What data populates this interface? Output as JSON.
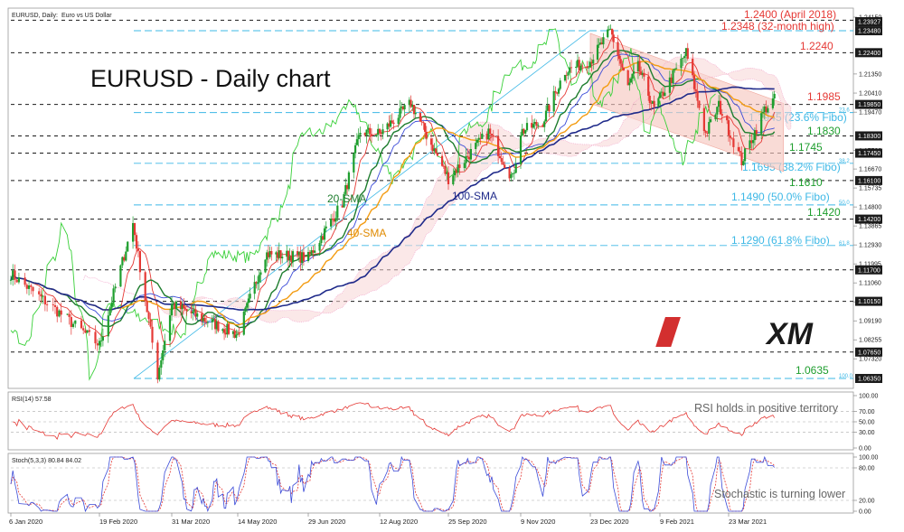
{
  "header": {
    "instrument": "EURUSD, Daily:",
    "description": "Euro vs US Dollar",
    "title": "EURUSD - Daily chart"
  },
  "logo_text": "XM",
  "chart_data": {
    "type": "candlestick",
    "price_axis_ticks": [
      "1.24150",
      "1.21350",
      "1.20410",
      "1.19470",
      "1.17590",
      "1.16670",
      "1.15735",
      "1.14800",
      "1.13865",
      "1.12930",
      "1.11995",
      "1.11060",
      "1.10125",
      "1.09190",
      "1.08255",
      "1.07320"
    ],
    "price_badges": [
      {
        "value": "1.23927",
        "kind": "black"
      },
      {
        "value": "1.23480",
        "kind": "black"
      },
      {
        "value": "1.22400",
        "kind": "black"
      },
      {
        "value": "1.19850",
        "kind": "black"
      },
      {
        "value": "1.18300",
        "kind": "black"
      },
      {
        "value": "1.17450",
        "kind": "black"
      },
      {
        "value": "1.16100",
        "kind": "black"
      },
      {
        "value": "1.14200",
        "kind": "black"
      },
      {
        "value": "1.11700",
        "kind": "black"
      },
      {
        "value": "1.10150",
        "kind": "black"
      },
      {
        "value": "1.07650",
        "kind": "black"
      },
      {
        "value": "1.06350",
        "kind": "black"
      }
    ],
    "ylim": [
      1.0595,
      1.2455
    ],
    "x_labels": [
      "6 Jan 2020",
      "19 Feb 2020",
      "31 Mar 2020",
      "14 May 2020",
      "29 Jun 2020",
      "12 Aug 2020",
      "25 Sep 2020",
      "9 Nov 2020",
      "23 Dec 2020",
      "9 Feb 2021",
      "23 Mar 2021"
    ],
    "levels": [
      {
        "label": "1.2400 (April 2018)",
        "value": 1.24,
        "color": "#e53935",
        "style": "dash"
      },
      {
        "label": "1.2348 (32-month high)",
        "value": 1.2348,
        "color": "#e53935",
        "style": "dash"
      },
      {
        "label": "1.2240",
        "value": 1.224,
        "color": "#e53935",
        "style": "dash"
      },
      {
        "label": "1.1985",
        "value": 1.1985,
        "color": "#e53935",
        "style": "dash"
      },
      {
        "label": "1.1945 (23.6% Fibo)",
        "value": 1.1945,
        "color": "#3db8e6",
        "style": "fibo",
        "fibo_tag": "23.6"
      },
      {
        "label": "1.1830",
        "value": 1.183,
        "color": "#1e9e2e",
        "style": "dash"
      },
      {
        "label": "1.1745",
        "value": 1.1745,
        "color": "#1e9e2e",
        "style": "dash"
      },
      {
        "label": "1.1695 (38.2% Fibo)",
        "value": 1.1695,
        "color": "#3db8e6",
        "style": "fibo",
        "fibo_tag": "38.2"
      },
      {
        "label": "1.1610",
        "value": 1.161,
        "color": "#1e9e2e",
        "style": "dash"
      },
      {
        "label": "1.1490 (50.0% Fibo)",
        "value": 1.149,
        "color": "#3db8e6",
        "style": "fibo",
        "fibo_tag": "50.0"
      },
      {
        "label": "1.1420",
        "value": 1.142,
        "color": "#1e9e2e",
        "style": "dash"
      },
      {
        "label": "1.1290 (61.8% Fibo)",
        "value": 1.129,
        "color": "#3db8e6",
        "style": "fibo",
        "fibo_tag": "61.8"
      },
      {
        "label": "",
        "value": 1.117,
        "color": "#1e9e2e",
        "style": "dash"
      },
      {
        "label": "",
        "value": 1.1015,
        "color": "#1e9e2e",
        "style": "dash"
      },
      {
        "label": "",
        "value": 1.0765,
        "color": "#1e9e2e",
        "style": "dash"
      },
      {
        "label": "1.0635",
        "value": 1.0635,
        "color": "#1e9e2e",
        "style": "dash",
        "fibo_tag": "100.0"
      }
    ],
    "price_path": [
      [
        "6 Jan 2020",
        1.115
      ],
      [
        "19 Feb 2020",
        1.08
      ],
      [
        "9 Mar 2020",
        1.14
      ],
      [
        "23 Mar 2020",
        1.065
      ],
      [
        "31 Mar 2020",
        1.1
      ],
      [
        "14 May 2020",
        1.085
      ],
      [
        "1 Jun 2020",
        1.125
      ],
      [
        "29 Jun 2020",
        1.123
      ],
      [
        "20 Jul 2020",
        1.15
      ],
      [
        "31 Jul 2020",
        1.185
      ],
      [
        "12 Aug 2020",
        1.184
      ],
      [
        "1 Sep 2020",
        1.199
      ],
      [
        "25 Sep 2020",
        1.162
      ],
      [
        "20 Oct 2020",
        1.185
      ],
      [
        "4 Nov 2020",
        1.162
      ],
      [
        "9 Nov 2020",
        1.185
      ],
      [
        "23 Nov 2020",
        1.19
      ],
      [
        "7 Dec 2020",
        1.215
      ],
      [
        "23 Dec 2020",
        1.22
      ],
      [
        "6 Jan 2021",
        1.2348
      ],
      [
        "18 Jan 2021",
        1.207
      ],
      [
        "25 Jan 2021",
        1.217
      ],
      [
        "5 Feb 2021",
        1.196
      ],
      [
        "25 Feb 2021",
        1.224
      ],
      [
        "9 Mar 2021",
        1.184
      ],
      [
        "17 Mar 2021",
        1.198
      ],
      [
        "31 Mar 2021",
        1.1705
      ],
      [
        "14 Apr 2021",
        1.196
      ],
      [
        "20 Apr 2021",
        1.201
      ]
    ],
    "series": [
      {
        "name": "20-SMA",
        "color": "#1e7d2e"
      },
      {
        "name": "40-SMA",
        "color": "#f39c12"
      },
      {
        "name": "100-SMA",
        "color": "#1f2a8a"
      }
    ],
    "overlays": [
      {
        "name": "Ichimoku cloud",
        "color": "#f4a6a6"
      },
      {
        "name": "Chikou span",
        "color": "#39d039"
      },
      {
        "name": "Tenkan-sen",
        "color": "#e53935"
      },
      {
        "name": "Kijun-sen",
        "color": "#3b4bd8"
      },
      {
        "name": "Descending channel",
        "color": "#f6c7c0"
      }
    ],
    "annotations": {
      "sma20": "20-SMA",
      "sma40": "40-SMA",
      "sma100": "100-SMA"
    },
    "rsi": {
      "label": "RSI(14) 57.58",
      "value": 57.58,
      "ylim": [
        0,
        100
      ],
      "ticks": [
        "100.00",
        "70.00",
        "50.00",
        "30.00",
        "0.00"
      ],
      "guides": [
        70,
        50,
        30
      ],
      "note": "RSI holds in positive territory"
    },
    "stochastic": {
      "label": "Stoch(5,3,3) 80.84 84.02",
      "k": 80.84,
      "d": 84.02,
      "ylim": [
        0,
        100
      ],
      "ticks": [
        "100.00",
        "80.00",
        "20.00",
        "0.00"
      ],
      "guides": [
        80,
        20
      ],
      "note": "Stochastic is turning lower"
    }
  }
}
